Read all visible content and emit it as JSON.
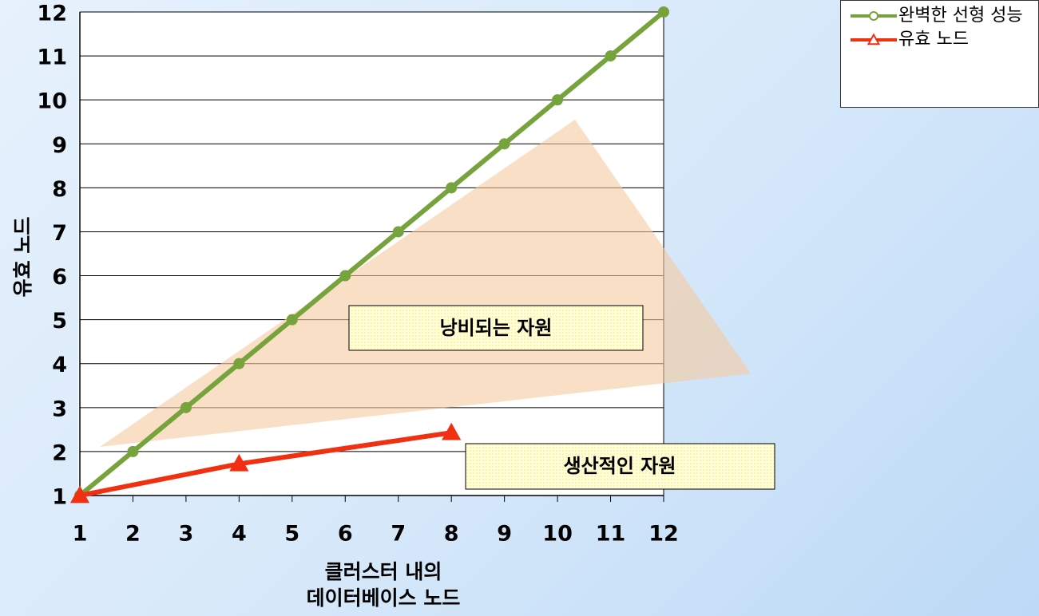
{
  "chart_data": {
    "type": "line",
    "x_label": "클러스터 내의 데이터베이스 노드",
    "y_label": "유효 노드",
    "xlim": [
      1,
      12
    ],
    "xticks": [
      1,
      2,
      3,
      4,
      5,
      6,
      7,
      8,
      9,
      10,
      11,
      12
    ],
    "ylim": [
      1,
      12
    ],
    "yticks": [
      1,
      2,
      3,
      4,
      5,
      6,
      7,
      8,
      9,
      10,
      11,
      12
    ],
    "grid": true,
    "legend": "top-right",
    "series": [
      {
        "name": "완벽한 선형 성능",
        "color": "#77a33c",
        "marker": "circle",
        "x": [
          1,
          2,
          3,
          4,
          5,
          6,
          7,
          8,
          9,
          10,
          11,
          12
        ],
        "values": [
          1,
          2,
          3,
          4,
          5,
          6,
          7,
          8,
          9,
          10,
          11,
          12
        ]
      },
      {
        "name": "유효 노드",
        "color": "#f03010",
        "marker": "triangle",
        "x": [
          1,
          4,
          8
        ],
        "values": [
          1,
          1.72,
          2.43
        ]
      }
    ],
    "annotations": [
      "낭비되는 자원",
      "생산적인 자원"
    ]
  }
}
